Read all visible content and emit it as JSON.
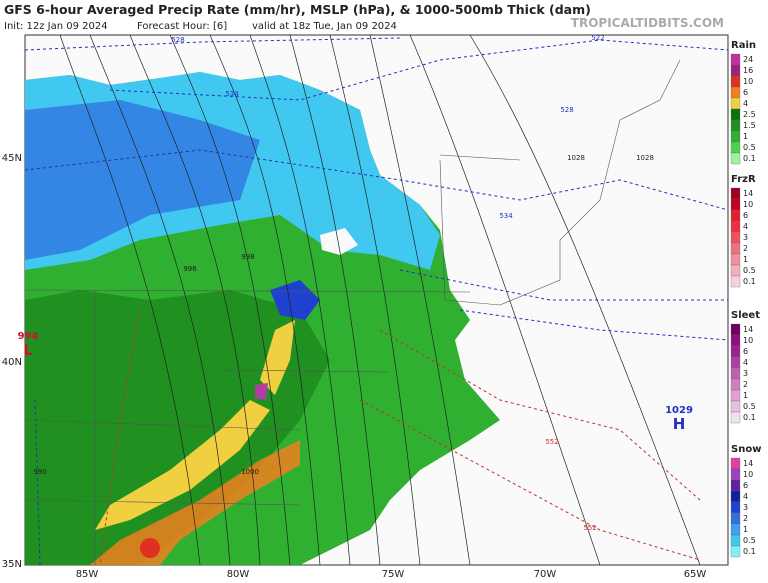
{
  "header": {
    "title": "GFS 6-hour Averaged Precip Rate (mm/hr), MSLP (hPa), & 1000-500mb Thick (dam)",
    "init": "Init: 12z Jan 09 2024",
    "forecast_hour": "Forecast Hour: [6]",
    "valid": "valid at 18z Tue, Jan 09 2024",
    "site": "TROPICALTIDBITS.COM"
  },
  "map": {
    "lat_labels": [
      "45N",
      "40N",
      "35N"
    ],
    "lon_labels": [
      "85W",
      "80W",
      "75W",
      "70W",
      "65W"
    ],
    "pressure_centers": [
      {
        "value": "1029",
        "symbol": "H",
        "color": "#2030c0"
      },
      {
        "value": "994",
        "symbol": "L",
        "color": "#d01030"
      }
    ],
    "contour_labels": [
      "528",
      "534",
      "522",
      "528",
      "534",
      "1028",
      "1028",
      "552",
      "552",
      "996",
      "998",
      "990",
      "1000"
    ]
  },
  "legends": [
    {
      "title": "Rain",
      "labels": [
        "24",
        "16",
        "10",
        "6",
        "4",
        "2.5",
        "1.5",
        "1",
        "0.5",
        "0.1"
      ],
      "colors": [
        "#c030a0",
        "#a02080",
        "#e03020",
        "#f08020",
        "#f0d040",
        "#107010",
        "#209020",
        "#30b030",
        "#50d050",
        "#a0f0a0"
      ]
    },
    {
      "title": "FrzR",
      "labels": [
        "14",
        "10",
        "6",
        "4",
        "3",
        "2",
        "1",
        "0.5",
        "0.1"
      ],
      "colors": [
        "#a00020",
        "#c00020",
        "#e02030",
        "#f03040",
        "#f05060",
        "#f07080",
        "#f090a0",
        "#f0b0c0",
        "#f8d0d8"
      ]
    },
    {
      "title": "Sleet",
      "labels": [
        "14",
        "10",
        "6",
        "4",
        "3",
        "2",
        "1",
        "0.5",
        "0.1"
      ],
      "colors": [
        "#700060",
        "#901080",
        "#a02090",
        "#b040a0",
        "#c060b0",
        "#d080c0",
        "#e0a0d0",
        "#e8c0e0",
        "#f0e0f0"
      ]
    },
    {
      "title": "Snow",
      "labels": [
        "14",
        "10",
        "6",
        "4",
        "3",
        "2",
        "1",
        "0.5",
        "0.1"
      ],
      "colors": [
        "#e040a0",
        "#a040c0",
        "#6020a0",
        "#1020a0",
        "#2040d0",
        "#3070e0",
        "#40a0f0",
        "#40c8f0",
        "#80f0f8"
      ]
    }
  ]
}
